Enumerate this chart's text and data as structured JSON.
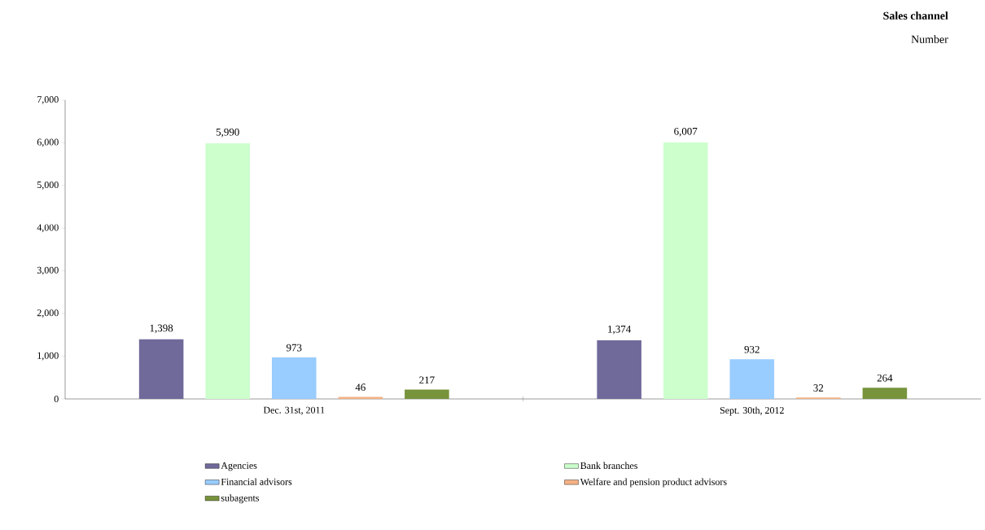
{
  "chart_data": {
    "type": "bar",
    "title": "Sales channel",
    "subtitle": "Number",
    "categories": [
      "Dec. 31st, 2011",
      "Sept. 30th, 2012"
    ],
    "series": [
      {
        "name": "Agencies",
        "color": "#6f6a9a",
        "values": [
          1398,
          1374
        ],
        "value_labels": [
          "1,398",
          "1,374"
        ]
      },
      {
        "name": "Bank branches",
        "color": "#ccffcc",
        "values": [
          5990,
          6007
        ],
        "value_labels": [
          "5,990",
          "6,007"
        ]
      },
      {
        "name": "Financial advisors",
        "color": "#99ccff",
        "values": [
          973,
          932
        ],
        "value_labels": [
          "973",
          "932"
        ]
      },
      {
        "name": "Welfare and pension product advisors",
        "color": "#f4b183",
        "values": [
          46,
          32
        ],
        "value_labels": [
          "46",
          "32"
        ]
      },
      {
        "name": "subagents",
        "color": "#77933c",
        "values": [
          217,
          264
        ],
        "value_labels": [
          "217",
          "264"
        ]
      }
    ],
    "ylim": [
      0,
      7000
    ],
    "yticks": [
      0,
      {
        "value": 1000,
        "label": "1,000"
      },
      {
        "value": 2000,
        "label": "2,000"
      },
      {
        "value": 3000,
        "label": "3,000"
      },
      {
        "value": 4000,
        "label": "4,000"
      },
      {
        "value": 5000,
        "label": "5,000"
      },
      {
        "value": 6000,
        "label": "6,000"
      },
      {
        "value": 7000,
        "label": "7,000"
      }
    ],
    "grid": false,
    "legend": "bottom"
  }
}
